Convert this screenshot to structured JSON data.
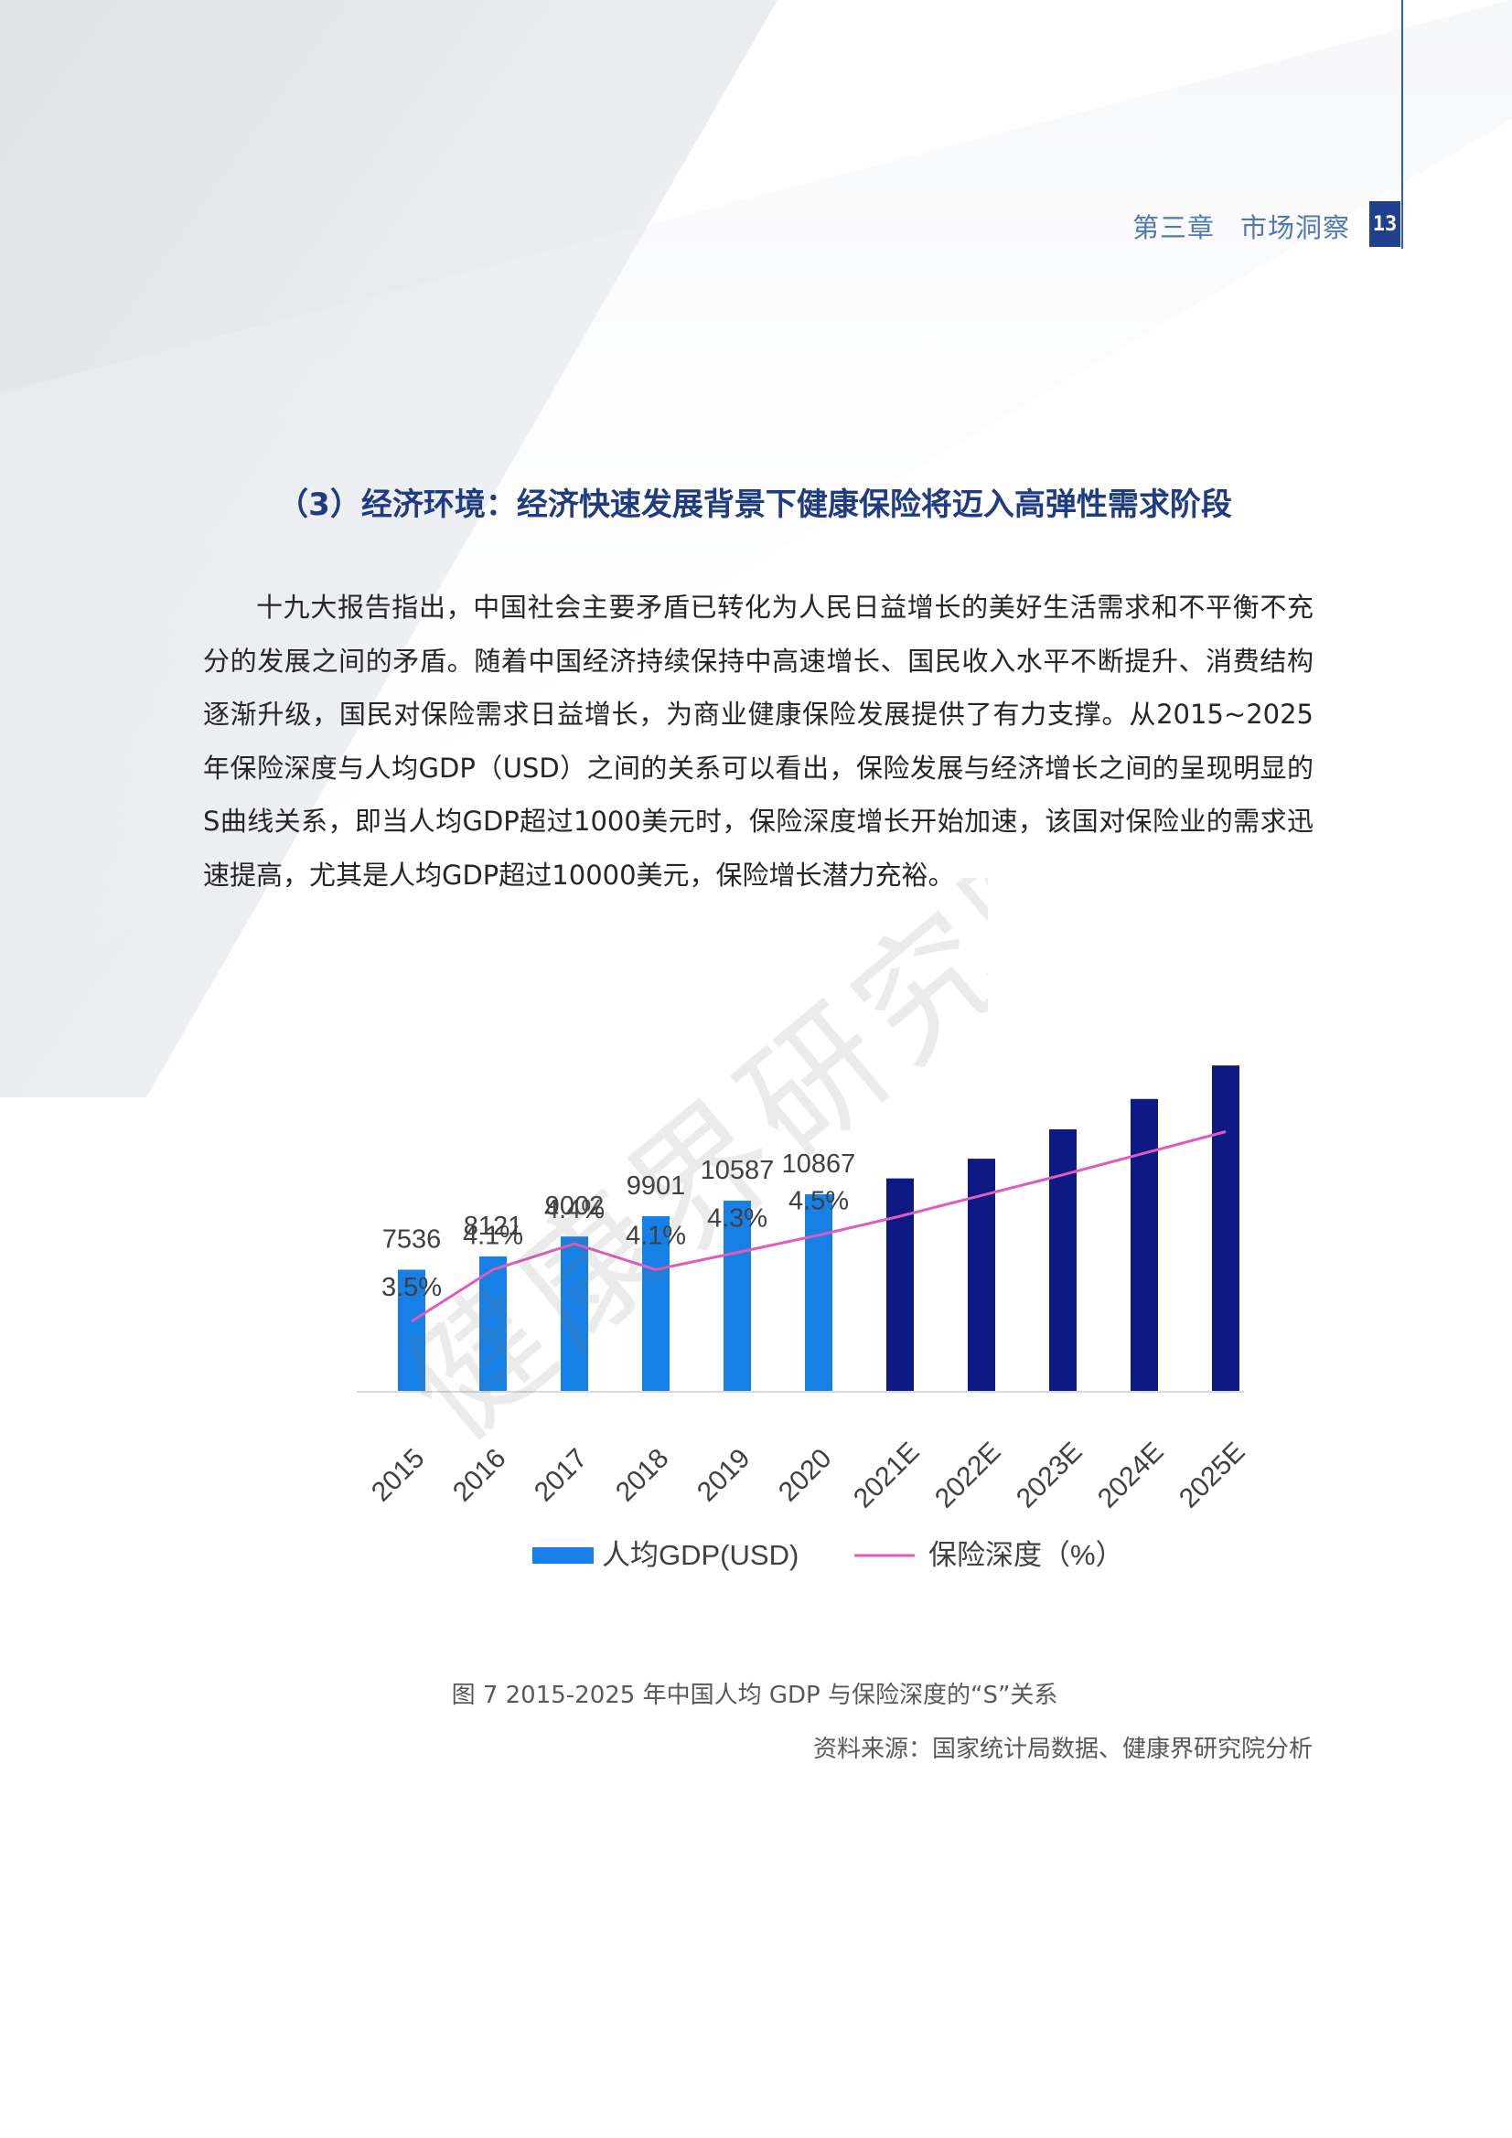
{
  "header": {
    "chapter": "第三章",
    "chapter_title": "市场洞察",
    "page_number": "13"
  },
  "section": {
    "heading": "（3）经济环境：经济快速发展背景下健康保险将迈入高弹性需求阶段",
    "paragraph": "十九大报告指出，中国社会主要矛盾已转化为人民日益增长的美好生活需求和不平衡不充分的发展之间的矛盾。随着中国经济持续保持中高速增长、国民收入水平不断提升、消费结构逐渐升级，国民对保险需求日益增长，为商业健康保险发展提供了有力支撑。从2015~2025年保险深度与人均GDP（USD）之间的关系可以看出，保险发展与经济增长之间的呈现明显的S曲线关系，即当人均GDP超过1000美元时，保险深度增长开始加速，该国对保险业的需求迅速提高，尤其是人均GDP超过10000美元，保险增长潜力充裕。"
  },
  "watermark": "健康界研究院",
  "chart_data": {
    "type": "bar",
    "title": "",
    "xlabel": "",
    "ylabel": "",
    "categories": [
      "2015",
      "2016",
      "2017",
      "2018",
      "2019",
      "2020",
      "2021E",
      "2022E",
      "2023E",
      "2024E",
      "2025E"
    ],
    "series": [
      {
        "name": "人均GDP(USD)",
        "type": "bar",
        "values": [
          7536,
          8121,
          9002,
          9901,
          10587,
          10867,
          11570,
          12440,
          13740,
          15080,
          16560
        ],
        "data_labels": [
          "7536",
          "8121",
          "9002",
          "9901",
          "10587",
          "10867",
          "",
          "",
          "",
          "",
          ""
        ],
        "colors": [
          "#1680e6",
          "#1680e6",
          "#1680e6",
          "#1680e6",
          "#1680e6",
          "#1680e6",
          "#0d1a84",
          "#0d1a84",
          "#0d1a84",
          "#0d1a84",
          "#0d1a84"
        ]
      },
      {
        "name": "保险深度（%）",
        "type": "line",
        "values": [
          3.5,
          4.1,
          4.4,
          4.1,
          4.3,
          4.5,
          4.72,
          4.96,
          5.2,
          5.45,
          5.7
        ],
        "data_labels": [
          "3.5%",
          "4.1%",
          "4.4%",
          "4.1%",
          "4.3%",
          "4.5%",
          "",
          "",
          "",
          "",
          ""
        ],
        "color": "#e05bbb"
      }
    ],
    "legend": {
      "position": "bottom",
      "items": [
        {
          "label": "人均GDP(USD)",
          "color": "#1680e6",
          "marker": "bar"
        },
        {
          "label": "保险深度（%）",
          "color": "#e05bbb",
          "marker": "line"
        }
      ]
    },
    "grid": false
  },
  "caption": "图 7 2015-2025 年中国人均 GDP 与保险深度的“S”关系",
  "source": "资料来源：国家统计局数据、健康界研究院分析"
}
